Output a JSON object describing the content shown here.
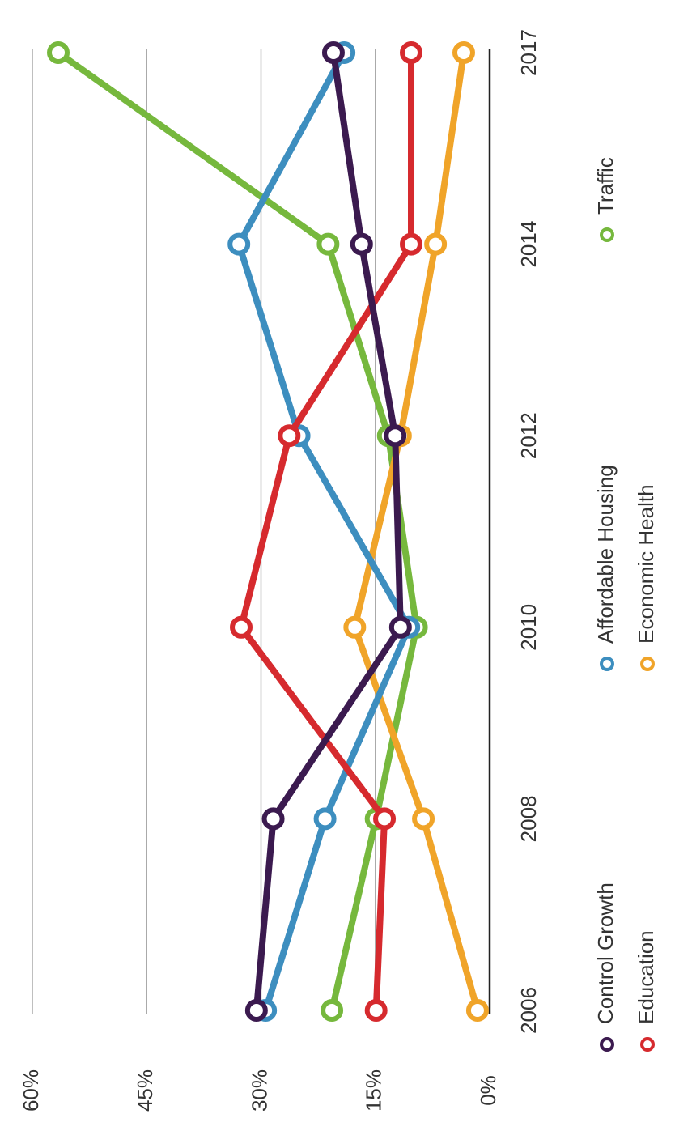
{
  "chart_data": {
    "type": "line",
    "categories": [
      "2006",
      "2008",
      "2010",
      "2012",
      "2014",
      "2017"
    ],
    "series": [
      {
        "name": "Control Growth",
        "color": "#3b1a4f",
        "values": [
          30.6,
          28.4,
          11.7,
          12.4,
          16.8,
          20.5
        ]
      },
      {
        "name": "Education",
        "color": "#d62a2e",
        "values": [
          14.9,
          13.8,
          32.6,
          26.3,
          10.3,
          10.3
        ]
      },
      {
        "name": "Affordable Housing",
        "color": "#3d8ebf",
        "values": [
          29.4,
          21.6,
          10.6,
          25.0,
          32.9,
          19.1
        ]
      },
      {
        "name": "Economic Health",
        "color": "#f0a429",
        "values": [
          1.6,
          8.7,
          17.7,
          11.7,
          7.1,
          3.4
        ]
      },
      {
        "name": "Traffic",
        "color": "#76b83d",
        "values": [
          20.7,
          14.9,
          9.6,
          13.3,
          21.2,
          56.6
        ]
      }
    ],
    "ylim": [
      0,
      60
    ],
    "yticks": [
      {
        "value": 0,
        "label": "0%"
      },
      {
        "value": 15,
        "label": "15%"
      },
      {
        "value": 30,
        "label": "30%"
      },
      {
        "value": 45,
        "label": "45%"
      },
      {
        "value": 60,
        "label": "60%"
      }
    ],
    "grid": true
  }
}
